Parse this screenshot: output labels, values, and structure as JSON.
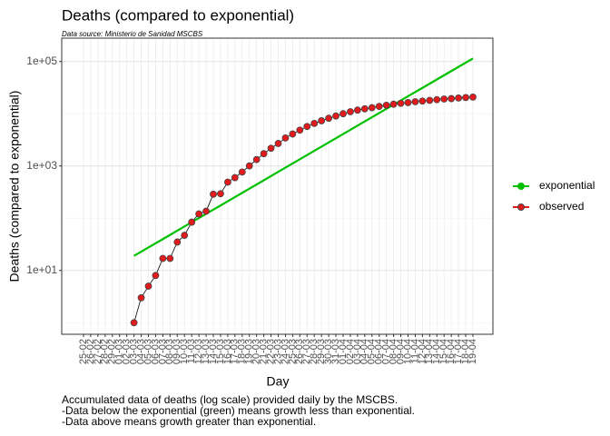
{
  "chart_data": {
    "type": "line",
    "title": "Deaths (compared to exponential)",
    "subtitle": "Data source: Ministerio de Sanidad MSCBS",
    "x_label": "Day",
    "y_label": "Deaths (compared to exponential)",
    "caption": [
      "Accumulated data of deaths (log scale) provided daily by the MSCBS.",
      "-Data below the exponential (green) means growth less than exponential.",
      "-Data above means growth greater than exponential."
    ],
    "categories": [
      "25-02",
      "26-02",
      "27-02",
      "28-02",
      "29-02",
      "01-03",
      "02-03",
      "03-03",
      "04-03",
      "05-03",
      "06-03",
      "07-03",
      "08-03",
      "09-03",
      "10-03",
      "11-03",
      "12-03",
      "13-03",
      "14-03",
      "15-03",
      "16-03",
      "17-03",
      "18-03",
      "19-03",
      "20-03",
      "21-03",
      "22-03",
      "23-03",
      "24-03",
      "25-03",
      "26-03",
      "27-03",
      "28-03",
      "29-03",
      "30-03",
      "31-03",
      "01-04",
      "02-04",
      "03-04",
      "04-04",
      "05-04",
      "06-04",
      "07-04",
      "08-04",
      "09-04",
      "10-04",
      "11-04",
      "12-04",
      "13-04",
      "14-04",
      "15-04",
      "16-04",
      "17-04",
      "18-04",
      "19-04"
    ],
    "series": [
      {
        "name": "exponential",
        "color": "#00c000",
        "values": [
          null,
          null,
          null,
          null,
          null,
          null,
          null,
          19,
          22.9,
          27.5,
          33.1,
          39.8,
          47.9,
          57.7,
          69.4,
          83.5,
          100.5,
          121,
          145.6,
          175,
          211,
          254,
          305,
          368,
          442,
          532,
          641,
          771,
          928,
          1117,
          1344,
          1617,
          1946,
          2342,
          2818,
          3391,
          4081,
          4911,
          5910,
          7112,
          8559,
          10300,
          12395,
          14916,
          17950,
          21601,
          25995,
          31282,
          37645,
          45302,
          54516,
          65604,
          78948,
          95006,
          114330
        ]
      },
      {
        "name": "observed",
        "color": "#e31a1c",
        "line_color": "#000000",
        "values": [
          null,
          null,
          null,
          null,
          null,
          null,
          null,
          1,
          3,
          5,
          8,
          17,
          17,
          35,
          47,
          84,
          121,
          136,
          288,
          294,
          491,
          598,
          767,
          1002,
          1326,
          1720,
          2182,
          2696,
          3434,
          4089,
          4858,
          5690,
          6528,
          7340,
          8189,
          9053,
          10003,
          10935,
          11744,
          12418,
          13055,
          13798,
          14555,
          15238,
          15843,
          16353,
          16972,
          17489,
          18056,
          18579,
          19130,
          19478,
          20043,
          20453,
          20852
        ]
      }
    ],
    "y_scale": "log",
    "ylim": [
      0.6,
      280000
    ],
    "yticks": [
      {
        "value": 10,
        "label": "1e+01"
      },
      {
        "value": 1000,
        "label": "1e+03"
      },
      {
        "value": 100000,
        "label": "1e+05"
      }
    ],
    "grid": true,
    "legend": "right"
  }
}
